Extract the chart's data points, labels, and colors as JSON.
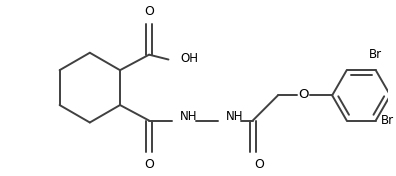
{
  "background": "#ffffff",
  "line_color": "#404040",
  "line_width": 1.4,
  "font_size": 8.5,
  "ring_r": 0.36,
  "benz_r": 0.3,
  "xlim": [
    0.0,
    4.0
  ],
  "ylim": [
    0.1,
    1.7
  ]
}
